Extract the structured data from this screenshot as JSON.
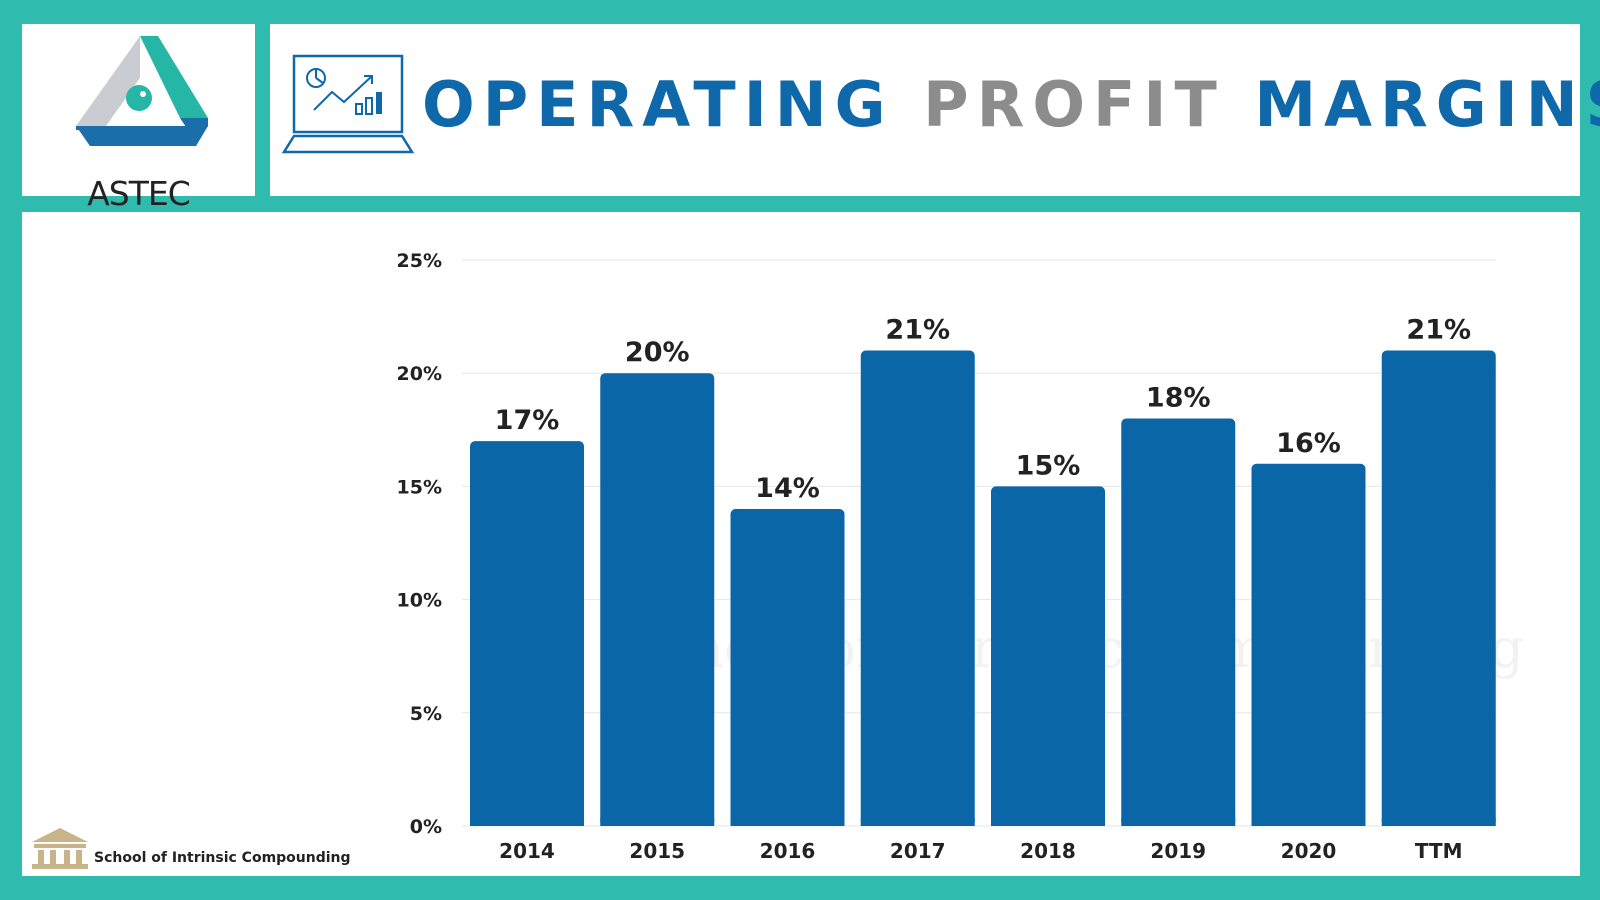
{
  "brand": {
    "logo_text": "ASTEC",
    "logo_icon": "astec-triangle-logo",
    "colors": {
      "frame": "#2fbcae",
      "bar": "#0a66a6",
      "title_blue": "#0f68a9",
      "title_gray": "#8c8c8c"
    }
  },
  "header": {
    "title_part1": "OPERATING",
    "title_part2": "PROFIT",
    "title_part3": "MARGINS",
    "icon": "laptop-analytics-icon"
  },
  "footer": {
    "text": "School of Intrinsic Compounding",
    "icon": "school-building-icon"
  },
  "watermark": "School of Intrinsic Compounding",
  "chart_data": {
    "type": "bar",
    "title": "OPERATING PROFIT MARGINS",
    "categories": [
      "2014",
      "2015",
      "2016",
      "2017",
      "2018",
      "2019",
      "2020",
      "TTM"
    ],
    "values": [
      17,
      20,
      14,
      21,
      15,
      18,
      16,
      21
    ],
    "data_labels": [
      "17%",
      "20%",
      "14%",
      "21%",
      "15%",
      "18%",
      "16%",
      "21%"
    ],
    "y_ticks": [
      "0%",
      "5%",
      "10%",
      "15%",
      "20%",
      "25%"
    ],
    "y_tick_values": [
      0,
      5,
      10,
      15,
      20,
      25
    ],
    "ylim": [
      0,
      25
    ],
    "grid": true,
    "legend": "none",
    "xlabel": "",
    "ylabel": ""
  }
}
